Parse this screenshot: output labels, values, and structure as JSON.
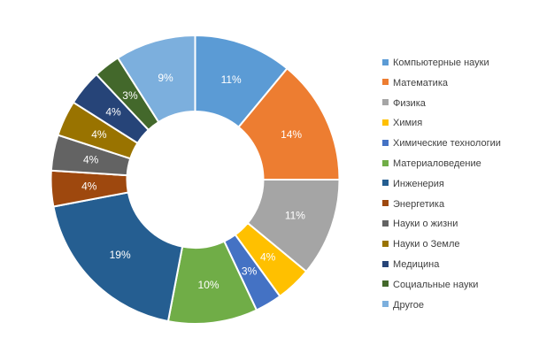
{
  "chart_data": {
    "type": "pie",
    "donut": true,
    "legend_position": "right",
    "categories": [
      "Компьютерные науки",
      "Математика",
      "Физика",
      "Химия",
      "Химические технологии",
      "Материаловедение",
      "Инженерия",
      "Энергетика",
      "Науки о жизни",
      "Науки о Земле",
      "Медицина",
      "Социальные науки",
      "Другое"
    ],
    "values": [
      11,
      14,
      11,
      4,
      3,
      10,
      19,
      4,
      4,
      4,
      4,
      3,
      9
    ],
    "labels": [
      "11%",
      "14%",
      "11%",
      "4%",
      "3%",
      "10%",
      "19%",
      "4%",
      "4%",
      "4%",
      "4%",
      "3%",
      "9%"
    ],
    "colors": [
      "#5b9bd5",
      "#ed7d31",
      "#a5a5a5",
      "#ffc000",
      "#4472c4",
      "#70ad47",
      "#255e91",
      "#9e480e",
      "#636363",
      "#997300",
      "#264478",
      "#43682b",
      "#7cafdd"
    ]
  }
}
